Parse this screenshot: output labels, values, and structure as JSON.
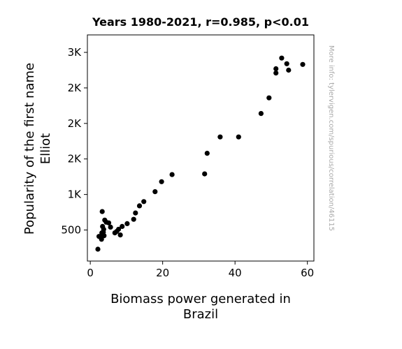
{
  "chart_data": {
    "type": "scatter",
    "title": "Years 1980-2021, r=0.985, p<0.01",
    "xlabel_lines": [
      "Biomass power generated in",
      "Brazil"
    ],
    "ylabel_lines": [
      "Popularity of the first name",
      "Elliot"
    ],
    "xlim": [
      -0.8,
      61.8
    ],
    "ylim": [
      63,
      3246
    ],
    "x_ticks": [
      {
        "value": 0,
        "label": "0"
      },
      {
        "value": 20,
        "label": "20"
      },
      {
        "value": 40,
        "label": "40"
      },
      {
        "value": 60,
        "label": "60"
      }
    ],
    "y_ticks": [
      {
        "value": 500,
        "label": "500"
      },
      {
        "value": 1000,
        "label": "1K"
      },
      {
        "value": 1500,
        "label": "2K"
      },
      {
        "value": 2000,
        "label": "2K"
      },
      {
        "value": 2500,
        "label": "2K"
      },
      {
        "value": 3000,
        "label": "3K"
      }
    ],
    "grid": false,
    "point_color": "#000000",
    "side_note": "More info: tylervigen.com/spurious/correlation/46115",
    "points": [
      [
        2.1,
        230
      ],
      [
        2.4,
        410
      ],
      [
        2.9,
        400
      ],
      [
        3.0,
        390
      ],
      [
        3.1,
        370
      ],
      [
        3.2,
        460
      ],
      [
        3.4,
        550
      ],
      [
        3.6,
        470
      ],
      [
        3.7,
        510
      ],
      [
        3.8,
        420
      ],
      [
        3.3,
        760
      ],
      [
        4.0,
        640
      ],
      [
        4.4,
        610
      ],
      [
        5.1,
        600
      ],
      [
        5.6,
        540
      ],
      [
        6.8,
        460
      ],
      [
        7.3,
        480
      ],
      [
        7.8,
        510
      ],
      [
        8.3,
        430
      ],
      [
        8.8,
        550
      ],
      [
        10.2,
        590
      ],
      [
        12.0,
        650
      ],
      [
        12.5,
        740
      ],
      [
        13.6,
        840
      ],
      [
        14.8,
        900
      ],
      [
        17.9,
        1040
      ],
      [
        19.7,
        1180
      ],
      [
        22.6,
        1280
      ],
      [
        31.6,
        1290
      ],
      [
        32.3,
        1580
      ],
      [
        35.9,
        1810
      ],
      [
        41.0,
        1810
      ],
      [
        47.2,
        2140
      ],
      [
        49.4,
        2360
      ],
      [
        51.3,
        2710
      ],
      [
        51.3,
        2770
      ],
      [
        52.9,
        2920
      ],
      [
        54.3,
        2840
      ],
      [
        54.8,
        2750
      ],
      [
        58.7,
        2830
      ]
    ]
  }
}
